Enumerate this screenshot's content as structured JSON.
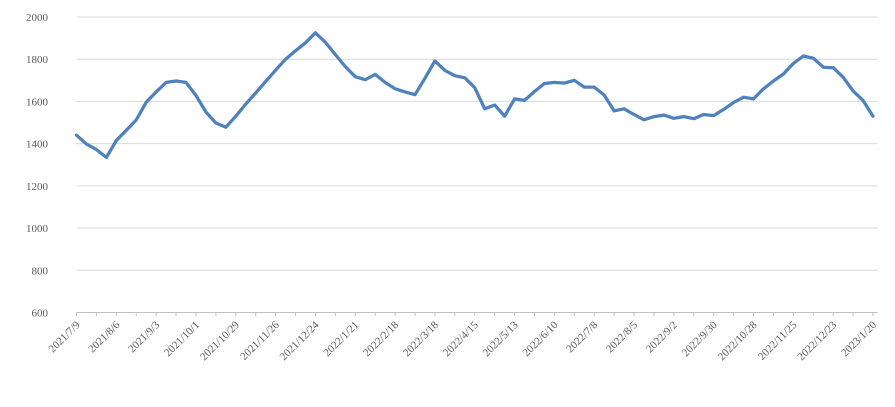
{
  "chart": {
    "background": "#FFFFFF",
    "line_color": "#4F81BD",
    "gridline_color": "#D9D9D9",
    "axis_color": "#BFBFBF",
    "tick_label_color": "#595959",
    "tick_label_font_px": 11,
    "line_width": 3.25
  },
  "chart_data": {
    "type": "line",
    "title": "",
    "xlabel": "",
    "ylabel": "",
    "legend": "none",
    "grid": "horizontal",
    "ylim": [
      600,
      2000
    ],
    "y_ticks": [
      600,
      800,
      1000,
      1200,
      1400,
      1600,
      1800,
      2000
    ],
    "x_tick_labels": [
      "2021/7/9",
      "2021/8/6",
      "2021/9/3",
      "2021/10/1",
      "2021/10/29",
      "2021/11/26",
      "2021/12/24",
      "2022/1/21",
      "2022/2/18",
      "2022/3/18",
      "2022/4/15",
      "2022/5/13",
      "2022/6/10",
      "2022/7/8",
      "2022/8/5",
      "2022/9/2",
      "2022/9/30",
      "2022/10/28",
      "2022/11/25",
      "2022/12/23",
      "2023/1/20"
    ],
    "points_per_label": 4,
    "minor_tick_every_points": 2,
    "series": [
      {
        "name": "",
        "values": [
          1440,
          1398,
          1372,
          1335,
          1415,
          1463,
          1512,
          1596,
          1645,
          1690,
          1697,
          1690,
          1628,
          1550,
          1498,
          1478,
          1530,
          1588,
          1640,
          1695,
          1748,
          1800,
          1840,
          1878,
          1925,
          1880,
          1822,
          1765,
          1717,
          1703,
          1728,
          1690,
          1660,
          1645,
          1632,
          1710,
          1792,
          1747,
          1722,
          1712,
          1665,
          1565,
          1583,
          1530,
          1612,
          1605,
          1647,
          1685,
          1690,
          1687,
          1700,
          1668,
          1668,
          1630,
          1555,
          1565,
          1538,
          1513,
          1528,
          1535,
          1520,
          1528,
          1518,
          1538,
          1533,
          1562,
          1595,
          1620,
          1612,
          1660,
          1697,
          1730,
          1780,
          1815,
          1805,
          1762,
          1760,
          1715,
          1650,
          1605,
          1530
        ]
      }
    ]
  }
}
